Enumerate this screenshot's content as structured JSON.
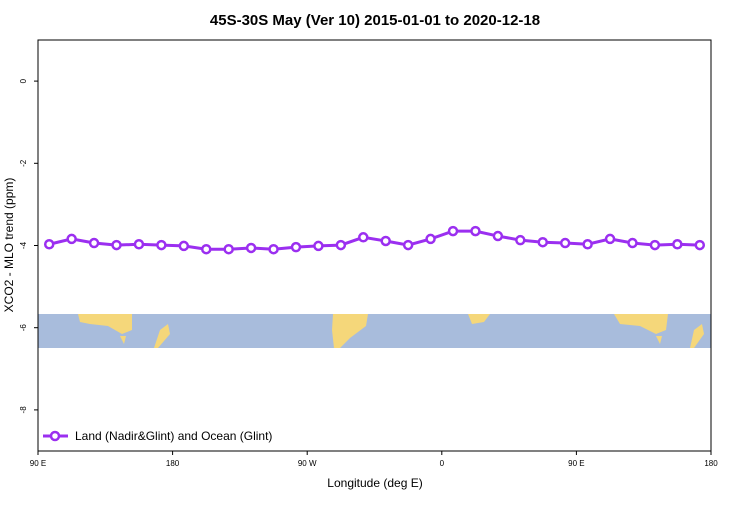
{
  "chart_data": {
    "type": "line",
    "title": "45S-30S May (Ver 10)   2015-01-01 to 2020-12-18",
    "x_label": "Longitude (deg E)",
    "y_label": "XCO2 - MLO trend (ppm)",
    "x": [
      97.5,
      112.5,
      127.5,
      142.5,
      157.5,
      172.5,
      187.5,
      202.5,
      217.5,
      232.5,
      247.5,
      262.5,
      277.5,
      292.5,
      307.5,
      322.5,
      337.5,
      352.5,
      367.5,
      382.5,
      397.5,
      412.5,
      427.5,
      442.5,
      457.5,
      472.5,
      487.5,
      502.5,
      517.5,
      532.5
    ],
    "series": [
      {
        "name": "Land (Nadir&Glint) and Ocean (Glint)",
        "color": "#9b2ff0",
        "values": [
          -3.97,
          -3.84,
          -3.94,
          -3.99,
          -3.97,
          -3.99,
          -4.01,
          -4.09,
          -4.09,
          -4.06,
          -4.09,
          -4.04,
          -4.01,
          -3.99,
          -3.8,
          -3.89,
          -3.99,
          -3.84,
          -3.65,
          -3.65,
          -3.77,
          -3.87,
          -3.92,
          -3.94,
          -3.97,
          -3.84,
          -3.94,
          -3.99,
          -3.97,
          -3.99
        ]
      }
    ],
    "xlim": [
      90,
      540
    ],
    "xticks": [
      {
        "value": 90,
        "label": "90 E"
      },
      180,
      {
        "value": 270,
        "label": "90 W"
      },
      {
        "value": 360,
        "label": "0"
      },
      {
        "value": 450,
        "label": "90 E"
      },
      {
        "value": 540,
        "label": "180"
      }
    ],
    "ylim": [
      -9,
      1
    ],
    "yticks": [
      0,
      -2,
      -4,
      -6,
      -8
    ],
    "legend": "bottom-left"
  }
}
